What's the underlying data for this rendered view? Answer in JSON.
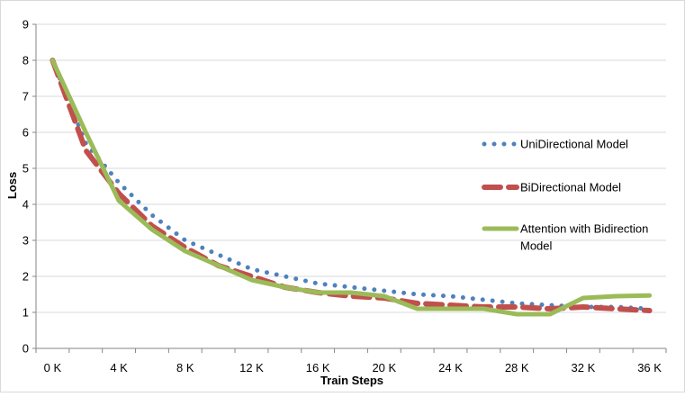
{
  "chart_data": {
    "type": "line",
    "title": "",
    "xlabel": "Train Steps",
    "ylabel": "Loss",
    "x_tick_labels": [
      "0 K",
      "4 K",
      "8 K",
      "12 K",
      "16 K",
      "20 K",
      "24 K",
      "28 K",
      "32 K",
      "36 K"
    ],
    "y_tick_labels": [
      "0",
      "1",
      "2",
      "3",
      "4",
      "5",
      "6",
      "7",
      "8",
      "9"
    ],
    "xlim": [
      -1,
      37
    ],
    "ylim": [
      0,
      9
    ],
    "grid": "horizontal",
    "legend_position": "right",
    "series": [
      {
        "name": "UniDirectional Model",
        "style": "dotted",
        "color": "#4f81bd",
        "x": [
          0,
          2,
          4,
          6,
          8,
          10,
          12,
          14,
          16,
          18,
          20,
          22,
          24,
          26,
          28,
          30,
          32,
          34,
          36
        ],
        "y": [
          8.0,
          5.7,
          4.6,
          3.7,
          3.0,
          2.6,
          2.2,
          2.0,
          1.8,
          1.7,
          1.6,
          1.5,
          1.45,
          1.35,
          1.25,
          1.2,
          1.15,
          1.15,
          1.1
        ]
      },
      {
        "name": "BiDirectional Model",
        "style": "dashed",
        "color": "#c0504d",
        "x": [
          0,
          2,
          4,
          6,
          8,
          10,
          12,
          14,
          16,
          18,
          20,
          22,
          24,
          26,
          28,
          30,
          32,
          34,
          36
        ],
        "y": [
          8.0,
          5.5,
          4.3,
          3.4,
          2.8,
          2.3,
          2.0,
          1.7,
          1.55,
          1.45,
          1.4,
          1.25,
          1.2,
          1.15,
          1.15,
          1.1,
          1.15,
          1.1,
          1.05
        ]
      },
      {
        "name": "Attention with Bidirection Model",
        "style": "solid",
        "color": "#9bbb59",
        "x": [
          0,
          2,
          4,
          6,
          8,
          10,
          12,
          14,
          16,
          18,
          20,
          22,
          24,
          26,
          28,
          30,
          32,
          34,
          36
        ],
        "y": [
          8.0,
          6.0,
          4.1,
          3.3,
          2.7,
          2.3,
          1.9,
          1.7,
          1.55,
          1.55,
          1.45,
          1.1,
          1.1,
          1.1,
          0.95,
          0.95,
          1.4,
          1.45,
          1.47
        ]
      }
    ]
  },
  "legend": {
    "items": [
      {
        "lines": [
          "UniDirectional Model"
        ]
      },
      {
        "lines": [
          "BiDirectional Model"
        ]
      },
      {
        "lines": [
          "Attention with Bidirection",
          "Model"
        ]
      }
    ]
  }
}
